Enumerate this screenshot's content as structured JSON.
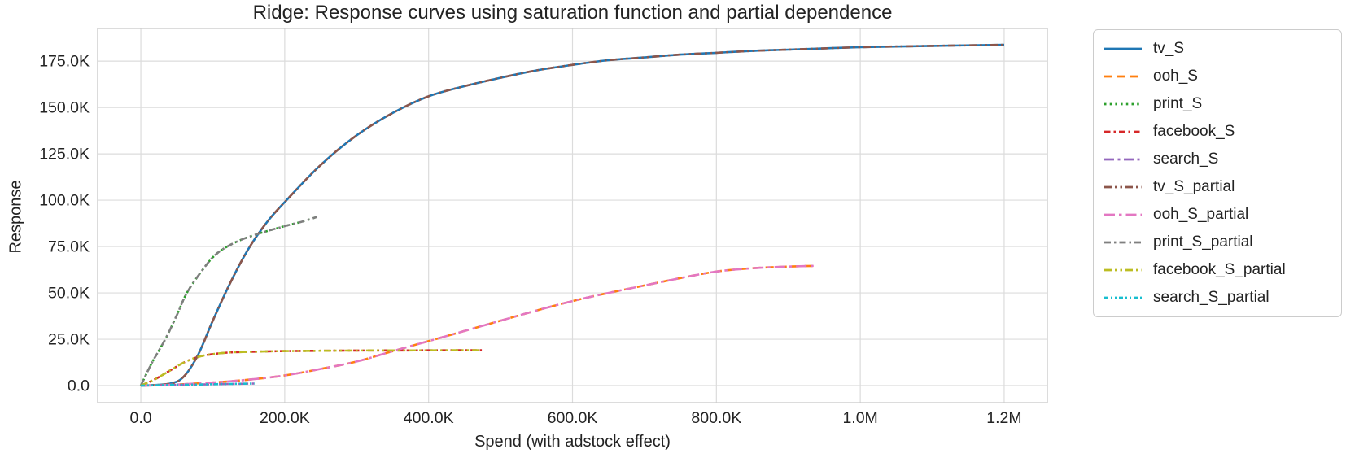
{
  "chart_data": {
    "type": "line",
    "title": "Ridge: Response curves using saturation function and partial dependence",
    "xlabel": "Spend (with adstock effect)",
    "ylabel": "Response",
    "grid": true,
    "legend_position": "outside-right",
    "xlim": [
      -60000,
      1260000
    ],
    "ylim": [
      -9200,
      192600
    ],
    "x_ticks": [
      {
        "value": 0,
        "label": "0.0"
      },
      {
        "value": 200000,
        "label": "200.0K"
      },
      {
        "value": 400000,
        "label": "400.0K"
      },
      {
        "value": 600000,
        "label": "600.0K"
      },
      {
        "value": 800000,
        "label": "800.0K"
      },
      {
        "value": 1000000,
        "label": "1.0M"
      },
      {
        "value": 1200000,
        "label": "1.2M"
      }
    ],
    "y_ticks": [
      {
        "value": 0,
        "label": "0.0"
      },
      {
        "value": 25000,
        "label": "25.0K"
      },
      {
        "value": 50000,
        "label": "50.0K"
      },
      {
        "value": 75000,
        "label": "75.0K"
      },
      {
        "value": 100000,
        "label": "100.0K"
      },
      {
        "value": 125000,
        "label": "125.0K"
      },
      {
        "value": 150000,
        "label": "150.0K"
      },
      {
        "value": 175000,
        "label": "175.0K"
      }
    ],
    "series": [
      {
        "name": "tv_S",
        "color": "#1f77b4",
        "dash": "solid",
        "overlaps_with": "tv_S_partial",
        "points": [
          [
            0,
            0
          ],
          [
            40000,
            1000
          ],
          [
            60000,
            5000
          ],
          [
            80000,
            17000
          ],
          [
            100000,
            35000
          ],
          [
            125000,
            56000
          ],
          [
            150000,
            74000
          ],
          [
            175000,
            88000
          ],
          [
            200000,
            99000
          ],
          [
            250000,
            119000
          ],
          [
            300000,
            135000
          ],
          [
            350000,
            147000
          ],
          [
            400000,
            156000
          ],
          [
            450000,
            161500
          ],
          [
            500000,
            166000
          ],
          [
            550000,
            170000
          ],
          [
            600000,
            173000
          ],
          [
            650000,
            175500
          ],
          [
            700000,
            177000
          ],
          [
            750000,
            178500
          ],
          [
            800000,
            179500
          ],
          [
            850000,
            180500
          ],
          [
            900000,
            181200
          ],
          [
            1000000,
            182500
          ],
          [
            1100000,
            183200
          ],
          [
            1200000,
            183800
          ]
        ]
      },
      {
        "name": "ooh_S",
        "color": "#ff7f0e",
        "dash": "dashed",
        "overlaps_with": "ooh_S_partial",
        "points": [
          [
            0,
            0
          ],
          [
            50000,
            600
          ],
          [
            100000,
            1700
          ],
          [
            150000,
            3200
          ],
          [
            200000,
            5500
          ],
          [
            250000,
            9000
          ],
          [
            300000,
            13000
          ],
          [
            345000,
            18000
          ],
          [
            400000,
            24000
          ],
          [
            450000,
            29500
          ],
          [
            500000,
            35000
          ],
          [
            550000,
            40500
          ],
          [
            600000,
            45600
          ],
          [
            650000,
            50000
          ],
          [
            700000,
            54000
          ],
          [
            750000,
            58000
          ],
          [
            800000,
            61500
          ],
          [
            850000,
            63300
          ],
          [
            900000,
            64200
          ],
          [
            940000,
            64600
          ]
        ]
      },
      {
        "name": "print_S",
        "color": "#2ca02c",
        "dash": "dotted",
        "overlaps_with": "print_S_partial",
        "points": [
          [
            0,
            0
          ],
          [
            15000,
            12000
          ],
          [
            34000,
            25000
          ],
          [
            50000,
            38000
          ],
          [
            64000,
            50000
          ],
          [
            85000,
            62000
          ],
          [
            105000,
            71000
          ],
          [
            130000,
            77000
          ],
          [
            160000,
            81500
          ],
          [
            200000,
            86000
          ],
          [
            225000,
            88500
          ],
          [
            245000,
            91000
          ]
        ]
      },
      {
        "name": "facebook_S",
        "color": "#d62728",
        "dash": "dashdot",
        "overlaps_with": "facebook_S_partial",
        "points": [
          [
            0,
            0
          ],
          [
            20000,
            3500
          ],
          [
            40000,
            8000
          ],
          [
            60000,
            12500
          ],
          [
            80000,
            15500
          ],
          [
            100000,
            17000
          ],
          [
            125000,
            17900
          ],
          [
            150000,
            18200
          ],
          [
            200000,
            18600
          ],
          [
            300000,
            18900
          ],
          [
            400000,
            19000
          ],
          [
            475000,
            19100
          ]
        ]
      },
      {
        "name": "search_S",
        "color": "#9467bd",
        "dash": "long-dash-dot",
        "overlaps_with": "search_S_partial",
        "points": [
          [
            0,
            0
          ],
          [
            40000,
            300
          ],
          [
            80000,
            600
          ],
          [
            120000,
            900
          ],
          [
            158000,
            1100
          ]
        ]
      },
      {
        "name": "tv_S_partial",
        "color": "#8c564b",
        "dash": "dash-dot-dot",
        "overlaps_with": "tv_S",
        "points": [
          [
            0,
            0
          ],
          [
            40000,
            1000
          ],
          [
            60000,
            5000
          ],
          [
            80000,
            17000
          ],
          [
            100000,
            35000
          ],
          [
            125000,
            56000
          ],
          [
            150000,
            74000
          ],
          [
            175000,
            88000
          ],
          [
            200000,
            99000
          ],
          [
            250000,
            119000
          ],
          [
            300000,
            135000
          ],
          [
            350000,
            147000
          ],
          [
            400000,
            156000
          ],
          [
            450000,
            161500
          ],
          [
            500000,
            166000
          ],
          [
            550000,
            170000
          ],
          [
            600000,
            173000
          ],
          [
            650000,
            175500
          ],
          [
            700000,
            177000
          ],
          [
            750000,
            178500
          ],
          [
            800000,
            179500
          ],
          [
            850000,
            180500
          ],
          [
            900000,
            181200
          ],
          [
            1000000,
            182500
          ],
          [
            1100000,
            183200
          ],
          [
            1200000,
            183800
          ]
        ]
      },
      {
        "name": "ooh_S_partial",
        "color": "#e377c2",
        "dash": "long-dash-dot-2",
        "overlaps_with": "ooh_S",
        "points": [
          [
            0,
            0
          ],
          [
            50000,
            600
          ],
          [
            100000,
            1700
          ],
          [
            150000,
            3200
          ],
          [
            200000,
            5500
          ],
          [
            250000,
            9000
          ],
          [
            300000,
            13000
          ],
          [
            345000,
            18000
          ],
          [
            400000,
            24000
          ],
          [
            450000,
            29500
          ],
          [
            500000,
            35000
          ],
          [
            550000,
            40500
          ],
          [
            600000,
            45600
          ],
          [
            650000,
            50000
          ],
          [
            700000,
            54000
          ],
          [
            750000,
            58000
          ],
          [
            800000,
            61500
          ],
          [
            850000,
            63300
          ],
          [
            900000,
            64200
          ],
          [
            940000,
            64600
          ]
        ]
      },
      {
        "name": "print_S_partial",
        "color": "#7f7f7f",
        "dash": "dash-dot",
        "overlaps_with": "print_S",
        "points": [
          [
            0,
            0
          ],
          [
            15000,
            12000
          ],
          [
            34000,
            25000
          ],
          [
            50000,
            38000
          ],
          [
            64000,
            50000
          ],
          [
            85000,
            62000
          ],
          [
            105000,
            71000
          ],
          [
            130000,
            77000
          ],
          [
            160000,
            81500
          ],
          [
            200000,
            86000
          ],
          [
            225000,
            88500
          ],
          [
            245000,
            91000
          ]
        ]
      },
      {
        "name": "facebook_S_partial",
        "color": "#bcbd22",
        "dash": "dash-dot-dot",
        "overlaps_with": "facebook_S",
        "points": [
          [
            0,
            0
          ],
          [
            20000,
            3500
          ],
          [
            40000,
            8000
          ],
          [
            60000,
            12500
          ],
          [
            80000,
            15500
          ],
          [
            100000,
            17000
          ],
          [
            125000,
            17900
          ],
          [
            150000,
            18200
          ],
          [
            200000,
            18600
          ],
          [
            300000,
            18900
          ],
          [
            400000,
            19000
          ],
          [
            475000,
            19100
          ]
        ]
      },
      {
        "name": "search_S_partial",
        "color": "#17becf",
        "dash": "dense-dash-dot-dot",
        "overlaps_with": "search_S",
        "points": [
          [
            0,
            0
          ],
          [
            40000,
            300
          ],
          [
            80000,
            600
          ],
          [
            120000,
            900
          ],
          [
            158000,
            1100
          ]
        ]
      }
    ],
    "colors": {
      "grid": "#dcdcdc",
      "axes_border": "#c8c8c8",
      "text": "#232323",
      "background": "#ffffff"
    }
  }
}
